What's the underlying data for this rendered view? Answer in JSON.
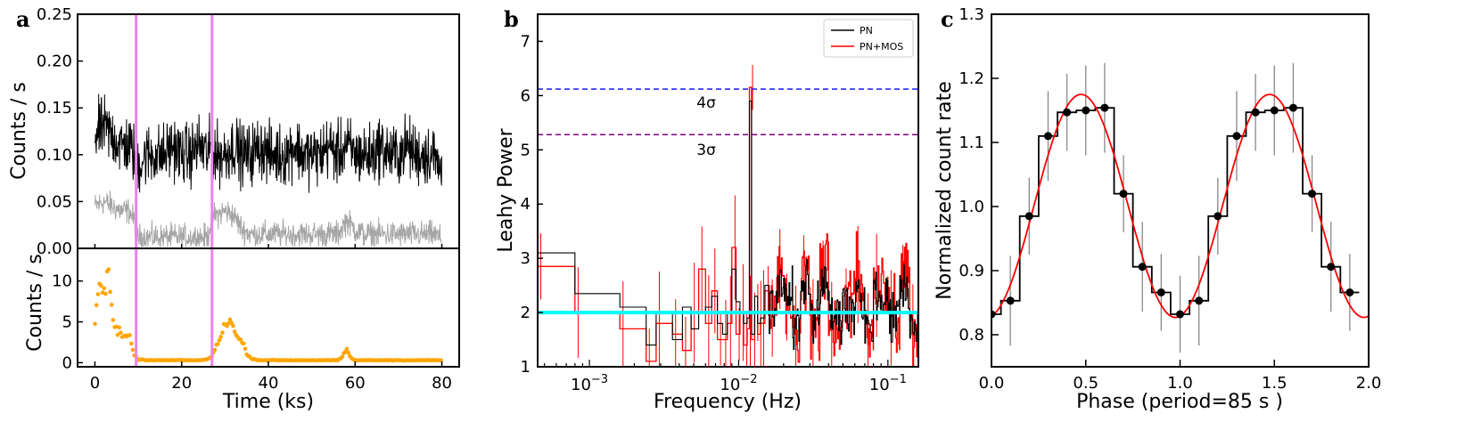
{
  "panels": [
    {
      "letter": "a"
    },
    {
      "letter": "b"
    },
    {
      "letter": "c"
    }
  ],
  "chart_data": [
    {
      "id": "a",
      "type": "line",
      "title": "",
      "xlabel": "Time (ks)",
      "ylabel_top": "Counts / s",
      "ylabel_bottom": "Counts / s",
      "xlim": [
        -4,
        84
      ],
      "ylim_top": [
        0.0,
        0.25
      ],
      "ylim_bottom": [
        -0.5,
        14
      ],
      "xticks": [
        0,
        20,
        40,
        60,
        80
      ],
      "yticks_top": [
        0.0,
        0.05,
        0.1,
        0.15,
        0.2,
        0.25
      ],
      "ytick_labels_top": [
        "0.00",
        "0.05",
        "0.10",
        "0.15",
        "0.20",
        "0.25"
      ],
      "yticks_bottom": [
        0,
        5,
        10
      ],
      "vlines": [
        9.5,
        27.0
      ],
      "series": [
        {
          "role": "source",
          "color": "#000000",
          "x": [
            0,
            2,
            4,
            6,
            8,
            9,
            10,
            12,
            14,
            16,
            18,
            20,
            22,
            24,
            26,
            27,
            28,
            30,
            32,
            34,
            36,
            38,
            40,
            42,
            44,
            46,
            48,
            50,
            52,
            54,
            56,
            58,
            60,
            62,
            64,
            66,
            68,
            70,
            72,
            74,
            76,
            78,
            80
          ],
          "values": [
            0.12,
            0.13,
            0.12,
            0.11,
            0.11,
            0.1,
            0.09,
            0.1,
            0.1,
            0.1,
            0.11,
            0.1,
            0.1,
            0.11,
            0.1,
            0.11,
            0.1,
            0.1,
            0.11,
            0.1,
            0.1,
            0.11,
            0.1,
            0.1,
            0.1,
            0.11,
            0.1,
            0.1,
            0.1,
            0.11,
            0.1,
            0.11,
            0.1,
            0.1,
            0.1,
            0.11,
            0.1,
            0.1,
            0.11,
            0.1,
            0.1,
            0.1,
            0.08
          ]
        },
        {
          "role": "background",
          "color": "#a6a6a6",
          "x": [
            0,
            2,
            4,
            6,
            8,
            9,
            10,
            12,
            14,
            16,
            18,
            20,
            22,
            24,
            26,
            27,
            28,
            30,
            32,
            34,
            36,
            38,
            40,
            42,
            44,
            46,
            48,
            50,
            52,
            54,
            56,
            58,
            60,
            62,
            64,
            66,
            68,
            70,
            72,
            74,
            76,
            78,
            80
          ],
          "values": [
            0.045,
            0.05,
            0.045,
            0.04,
            0.04,
            0.03,
            0.012,
            0.012,
            0.012,
            0.012,
            0.012,
            0.012,
            0.012,
            0.012,
            0.012,
            0.035,
            0.035,
            0.04,
            0.035,
            0.02,
            0.015,
            0.015,
            0.015,
            0.015,
            0.015,
            0.015,
            0.015,
            0.015,
            0.015,
            0.015,
            0.015,
            0.03,
            0.02,
            0.015,
            0.015,
            0.015,
            0.015,
            0.015,
            0.015,
            0.015,
            0.015,
            0.015,
            0.01
          ]
        },
        {
          "role": "flares",
          "color": "#ffa500",
          "x": [
            0,
            0.5,
            1,
            1.5,
            2,
            2.5,
            3,
            3.5,
            4,
            5,
            6,
            7,
            8,
            9,
            10,
            12,
            15,
            18,
            21,
            24,
            26,
            27,
            28,
            29,
            30,
            31,
            32,
            33,
            34,
            35,
            36,
            38,
            42,
            46,
            50,
            54,
            56,
            57,
            58,
            59,
            60,
            64,
            68,
            72,
            76,
            80
          ],
          "values": [
            5.5,
            8.5,
            10.5,
            9.0,
            10.0,
            8.0,
            12.5,
            9.5,
            5.0,
            4.0,
            3.5,
            3.0,
            3.2,
            1.0,
            0.4,
            0.3,
            0.3,
            0.3,
            0.3,
            0.3,
            0.4,
            0.8,
            2.0,
            3.5,
            4.5,
            5.5,
            4.0,
            3.0,
            2.5,
            1.2,
            0.5,
            0.3,
            0.3,
            0.3,
            0.3,
            0.3,
            0.3,
            0.6,
            1.7,
            0.6,
            0.3,
            0.3,
            0.3,
            0.3,
            0.3,
            0.3
          ]
        }
      ]
    },
    {
      "id": "b",
      "type": "line",
      "title": "",
      "xlabel": "Frequency (Hz)",
      "ylabel": "Leahy Power",
      "xscale": "log",
      "xlim": [
        0.00045,
        0.16
      ],
      "ylim": [
        1,
        7.5
      ],
      "xticks": [
        0.001,
        0.01,
        0.1
      ],
      "xtick_labels": [
        "10−3",
        "10−2",
        "10−1"
      ],
      "yticks": [
        1,
        2,
        3,
        4,
        5,
        6,
        7
      ],
      "legend_position": "top-right",
      "hlines": [
        {
          "y": 6.12,
          "label": "4σ",
          "color": "#0000ff"
        },
        {
          "y": 5.28,
          "label": "3σ",
          "color": "#800080"
        },
        {
          "y": 2.0,
          "label": "",
          "color": "#00ffff"
        }
      ],
      "series": [
        {
          "name": "PN",
          "color": "#000000",
          "x": [
            0.00045,
            0.0008,
            0.0016,
            0.0024,
            0.0028,
            0.0036,
            0.0042,
            0.0048,
            0.0054,
            0.006,
            0.0066,
            0.0072,
            0.0078,
            0.0084,
            0.009,
            0.0096,
            0.0102,
            0.0108,
            0.0114,
            0.0118,
            0.0122,
            0.0128,
            0.0134,
            0.014,
            0.015,
            0.016,
            0.018,
            0.02,
            0.023,
            0.026,
            0.03,
            0.035,
            0.04,
            0.05,
            0.06,
            0.07,
            0.08,
            0.1,
            0.12,
            0.14,
            0.16
          ],
          "values": [
            3.1,
            2.35,
            2.1,
            1.4,
            2.0,
            1.5,
            2.1,
            1.7,
            2.0,
            2.1,
            2.3,
            1.8,
            1.6,
            2.0,
            2.8,
            2.2,
            2.0,
            1.8,
            1.9,
            5.9,
            1.6,
            2.3,
            1.8,
            1.9,
            2.5,
            2.1,
            2.6,
            2.3,
            1.8,
            2.4,
            2.0,
            2.6,
            1.9,
            2.2,
            2.4,
            1.8,
            2.3,
            2.0,
            2.5,
            1.8,
            2.1
          ]
        },
        {
          "name": "PN+MOS",
          "color": "#ff0000",
          "x": [
            0.00045,
            0.0008,
            0.0016,
            0.0024,
            0.0028,
            0.0036,
            0.0042,
            0.0048,
            0.0054,
            0.006,
            0.0066,
            0.0072,
            0.0078,
            0.0084,
            0.009,
            0.0096,
            0.0102,
            0.0108,
            0.0114,
            0.0118,
            0.0122,
            0.0128,
            0.0134,
            0.014,
            0.015,
            0.016,
            0.018,
            0.02,
            0.023,
            0.026,
            0.03,
            0.035,
            0.04,
            0.05,
            0.06,
            0.07,
            0.08,
            0.1,
            0.12,
            0.14,
            0.16
          ],
          "values": [
            2.85,
            2.0,
            1.7,
            1.1,
            1.8,
            1.6,
            1.3,
            2.0,
            2.8,
            1.8,
            2.4,
            1.5,
            1.5,
            1.8,
            3.2,
            1.6,
            2.0,
            1.4,
            1.7,
            6.15,
            1.5,
            2.0,
            1.6,
            1.8,
            2.4,
            1.9,
            2.8,
            2.1,
            1.6,
            2.9,
            1.8,
            2.9,
            1.7,
            2.3,
            2.7,
            1.6,
            2.5,
            1.9,
            2.8,
            1.6,
            2.2
          ]
        }
      ]
    },
    {
      "id": "c",
      "type": "line",
      "title": "",
      "xlabel": "Phase (period=85 s )",
      "ylabel": "Normalized count rate",
      "xlim": [
        0.0,
        2.0
      ],
      "ylim": [
        0.75,
        1.3
      ],
      "xticks": [
        0.0,
        0.5,
        1.0,
        1.5,
        2.0
      ],
      "xtick_labels": [
        "0.0",
        "0.5",
        "1.0",
        "1.5",
        "2.0"
      ],
      "yticks": [
        0.8,
        0.9,
        1.0,
        1.1,
        1.2,
        1.3
      ],
      "ytick_labels": [
        "0.8",
        "0.9",
        "1.0",
        "1.1",
        "1.2",
        "1.3"
      ],
      "bin_width": 0.1,
      "points_x": [
        0.0,
        0.1,
        0.2,
        0.3,
        0.4,
        0.5,
        0.6,
        0.7,
        0.8,
        0.9,
        1.0,
        1.1,
        1.2,
        1.3,
        1.4,
        1.5,
        1.6,
        1.7,
        1.8,
        1.9
      ],
      "points_y": [
        0.832,
        0.853,
        0.985,
        1.11,
        1.147,
        1.15,
        1.154,
        1.02,
        0.906,
        0.866,
        0.832,
        0.853,
        0.985,
        1.11,
        1.147,
        1.15,
        1.154,
        1.02,
        0.906,
        0.866
      ],
      "errors": [
        0.06,
        0.07,
        0.06,
        0.07,
        0.06,
        0.07,
        0.07,
        0.06,
        0.07,
        0.06,
        0.06,
        0.07,
        0.06,
        0.07,
        0.06,
        0.07,
        0.07,
        0.06,
        0.07,
        0.06
      ],
      "fit": {
        "type": "sinusoid",
        "color": "#ff0000",
        "mean": 1.001,
        "amplitude": 0.174,
        "phase_peak": 0.475
      }
    }
  ]
}
